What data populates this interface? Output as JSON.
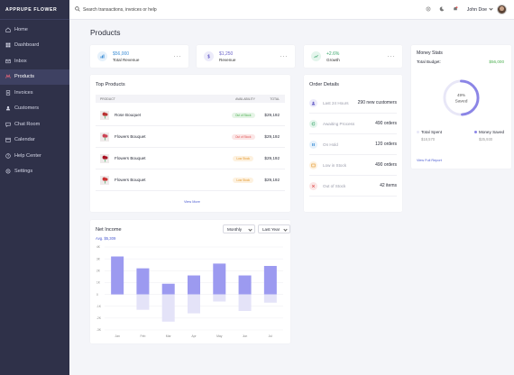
{
  "brand": "APPRUPE FLOWER",
  "sidebar": {
    "items": [
      {
        "label": "Home",
        "icon": "home-icon",
        "active": false
      },
      {
        "label": "Dashboard",
        "icon": "dashboard-icon",
        "active": false
      },
      {
        "label": "Inbox",
        "icon": "inbox-icon",
        "active": false
      },
      {
        "label": "Products",
        "icon": "products-icon",
        "active": true
      },
      {
        "label": "Invoices",
        "icon": "invoices-icon",
        "active": false
      },
      {
        "label": "Customers",
        "icon": "customers-icon",
        "active": false
      },
      {
        "label": "Chat Room",
        "icon": "chat-icon",
        "active": false
      },
      {
        "label": "Calendar",
        "icon": "calendar-icon",
        "active": false
      },
      {
        "label": "Help Center",
        "icon": "help-icon",
        "active": false
      },
      {
        "label": "Settings",
        "icon": "settings-icon",
        "active": false
      }
    ]
  },
  "header": {
    "search_placeholder": "Search transactions, invoices or help",
    "user_name": "John Doe"
  },
  "page_title": "Products",
  "stats": [
    {
      "value": "$56,000",
      "label": "Total Revenue",
      "color": "#3f8fd6",
      "bg": "#e6f1fb",
      "icon": "chart-icon"
    },
    {
      "value": "$1,250",
      "label": "Revenue",
      "color": "#6b63c9",
      "bg": "#ecebfa",
      "icon": "dollar-icon"
    },
    {
      "value": "+2.6%",
      "label": "Growth",
      "color": "#3aa66b",
      "bg": "#e4f5ec",
      "icon": "trend-icon"
    }
  ],
  "more_label": "···",
  "top_products": {
    "title": "Top Products",
    "columns": [
      "PRODUCT",
      "AVAILABILITY",
      "TOTAL"
    ],
    "rows": [
      {
        "name": "Rose Bouquet",
        "availability": "Out of Stock",
        "badge_bg": "#e5f4e6",
        "badge_color": "#4caf50",
        "total": "$29,192"
      },
      {
        "name": "Flowers Bouquet",
        "availability": "Out of Stock",
        "badge_bg": "#fbe6e6",
        "badge_color": "#e05252",
        "total": "$29,192"
      },
      {
        "name": "Flowers Bouquet",
        "availability": "Low Stock",
        "badge_bg": "#fdf1df",
        "badge_color": "#e3962a",
        "total": "$29,192"
      },
      {
        "name": "Flowers Bouquet",
        "availability": "Low Stock",
        "badge_bg": "#fdf1df",
        "badge_color": "#e3962a",
        "total": "$29,192"
      }
    ],
    "link": "View More"
  },
  "order_details": {
    "title": "Order Details",
    "rows": [
      {
        "label": "Last 24 Hours",
        "value": "290 new customers",
        "color": "#6b63c9",
        "bg": "#ecebfa",
        "icon": "user-icon"
      },
      {
        "label": "Awaiting Process",
        "value": "490 orders",
        "color": "#3aa66b",
        "bg": "#e4f5ec",
        "icon": "refresh-icon"
      },
      {
        "label": "On Hold",
        "value": "120 orders",
        "color": "#3f8fd6",
        "bg": "#e6f1fb",
        "icon": "pause-icon"
      },
      {
        "label": "Low in Stock",
        "value": "490 orders",
        "color": "#e3962a",
        "bg": "#fdf1df",
        "icon": "box-icon"
      },
      {
        "label": "Out of Stock",
        "value": "42 items",
        "color": "#e05252",
        "bg": "#fbe6e6",
        "icon": "cross-icon"
      }
    ]
  },
  "money_stats": {
    "title": "Money Stats",
    "budget_label": "Total Budget:",
    "budget_value": "$56,000",
    "percent": "49%",
    "saved_label": "Saved",
    "fraction_saved": 0.49,
    "spent_label": "Total Spent",
    "spent_value": "$18,570",
    "saved_legend_label": "Money Saved",
    "saved_value": "$25,930",
    "link": "View Full Report",
    "ring_color": "#8b85e6",
    "ring_track": "#e8e7f7"
  },
  "net_income": {
    "title": "Net Income",
    "subtitle": "Avg. $5,309",
    "period": "Monthly",
    "range": "Last Year"
  },
  "chart_data": {
    "type": "bar",
    "categories": [
      "Jan",
      "Feb",
      "Mar",
      "Apr",
      "May",
      "Jun",
      "Jul"
    ],
    "y_ticks": [
      "4K",
      "3K",
      "2K",
      "1K",
      "0",
      "-1K",
      "-2K",
      "-3K"
    ],
    "ylim": [
      -3,
      4
    ],
    "series": [
      {
        "values": [
          3.2,
          2.2,
          0.9,
          1.6,
          2.6,
          1.6,
          2.4
        ],
        "color": "#9c9af0"
      },
      {
        "values": [
          0,
          -1.3,
          -2.3,
          -1.6,
          -0.6,
          -1.4,
          -0.7
        ],
        "color": "#e4e3f8"
      }
    ],
    "grid": true
  }
}
